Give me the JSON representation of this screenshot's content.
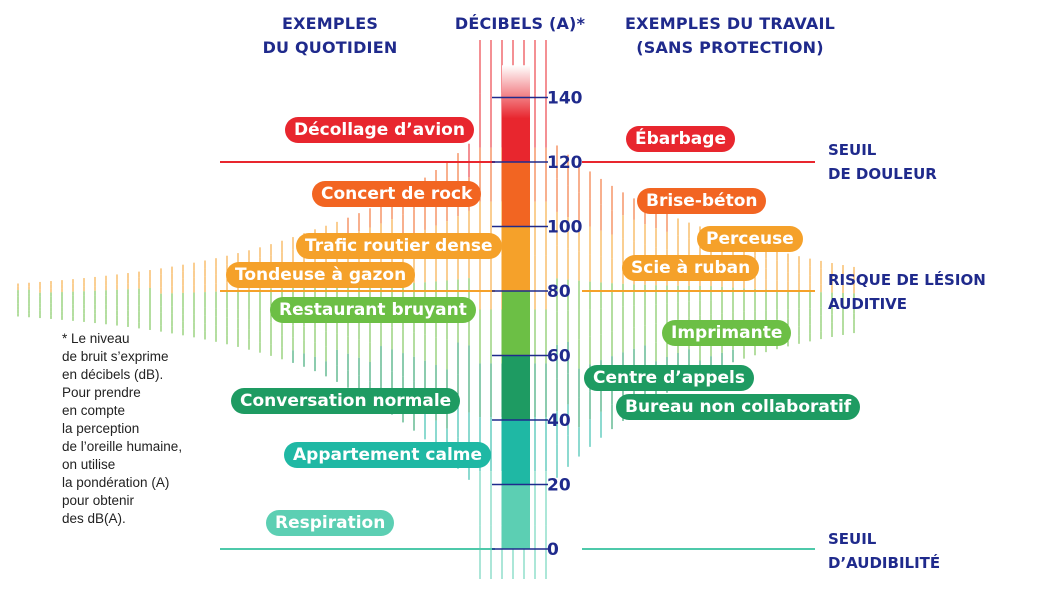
{
  "headers": {
    "left": [
      "EXEMPLES",
      "DU QUOTIDIEN"
    ],
    "center": "DÉCIBELS (A)*",
    "right": [
      "EXEMPLES DU TRAVAIL",
      "(SANS PROTECTION)"
    ]
  },
  "thresholds": [
    {
      "db": 120,
      "label": [
        "SEUIL",
        "DE DOULEUR"
      ],
      "color": "#e8262e"
    },
    {
      "db": 80,
      "label": [
        "RISQUE DE LÉSION",
        "AUDITIVE"
      ],
      "color": "#f5a12a"
    },
    {
      "db": 0,
      "label": [
        "SEUIL",
        "D’AUDIBILITÉ"
      ],
      "color": "#4ec9aa"
    }
  ],
  "footnote": [
    "* Le niveau",
    "de bruit s’exprime",
    "en décibels (dB).",
    "Pour prendre",
    "en compte",
    "la perception",
    "de l’oreille humaine,",
    "on utilise",
    "la pondération (A)",
    "pour obtenir",
    "des dB(A)."
  ],
  "chart_data": {
    "type": "bar",
    "ylabel": "DÉCIBELS (A)*",
    "ylim": [
      0,
      150
    ],
    "ticks": [
      0,
      20,
      40,
      60,
      80,
      100,
      120,
      140
    ],
    "scale_bands": [
      {
        "from": 0,
        "to": 20,
        "color": "#5ccfb3"
      },
      {
        "from": 20,
        "to": 40,
        "color": "#1fb8a4"
      },
      {
        "from": 40,
        "to": 60,
        "color": "#1e9b62"
      },
      {
        "from": 60,
        "to": 80,
        "color": "#6cbf45"
      },
      {
        "from": 80,
        "to": 100,
        "color": "#f5a12a"
      },
      {
        "from": 100,
        "to": 120,
        "color": "#f26522"
      },
      {
        "from": 120,
        "to": 150,
        "color": "#e8262e"
      }
    ],
    "everyday_examples": [
      {
        "label": "Décollage d’avion",
        "db": 130,
        "color": "#e8262e"
      },
      {
        "label": "Concert de rock",
        "db": 110,
        "color": "#f26522"
      },
      {
        "label": "Trafic routier dense",
        "db": 94,
        "color": "#f5a12a"
      },
      {
        "label": "Tondeuse à gazon",
        "db": 85,
        "color": "#f5a12a"
      },
      {
        "label": "Restaurant bruyant",
        "db": 74,
        "color": "#6cbf45"
      },
      {
        "label": "Conversation normale",
        "db": 46,
        "color": "#1e9b62"
      },
      {
        "label": "Appartement calme",
        "db": 29,
        "color": "#1fb8a4"
      },
      {
        "label": "Respiration",
        "db": 8,
        "color": "#5ccfb3"
      }
    ],
    "work_examples": [
      {
        "label": "Ébarbage",
        "db": 127,
        "color": "#e8262e"
      },
      {
        "label": "Brise-béton",
        "db": 108,
        "color": "#f26522"
      },
      {
        "label": "Perceuse",
        "db": 96,
        "color": "#f5a12a"
      },
      {
        "label": "Scie à ruban",
        "db": 87,
        "color": "#f5a12a"
      },
      {
        "label": "Imprimante",
        "db": 67,
        "color": "#6cbf45"
      },
      {
        "label": "Centre d’appels",
        "db": 53,
        "color": "#1e9b62"
      },
      {
        "label": "Bureau non collaboratif",
        "db": 44,
        "color": "#1e9b62"
      }
    ]
  }
}
